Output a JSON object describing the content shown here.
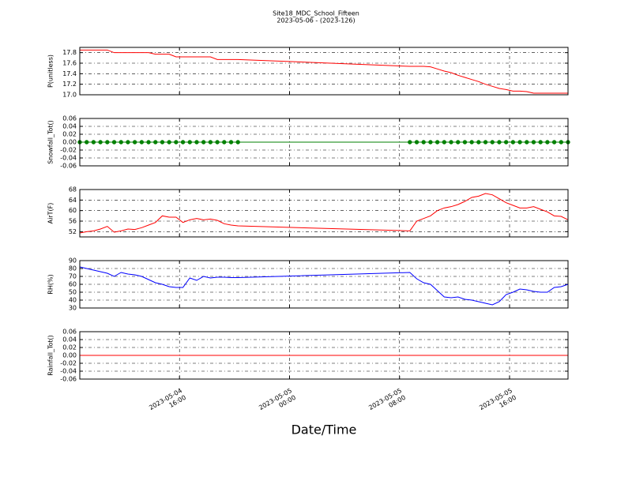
{
  "chart_data": {
    "type": "line",
    "title": "Site18_MDC_School_Fifteen",
    "subtitle": "2023-05-06 - (2023-126)",
    "xlabel": "Date/Time",
    "grid": true,
    "x": [
      "2023-05-04 08:45",
      "2023-05-04 09:15",
      "2023-05-04 09:45",
      "2023-05-04 10:15",
      "2023-05-04 10:45",
      "2023-05-04 11:15",
      "2023-05-04 11:45",
      "2023-05-04 12:15",
      "2023-05-04 12:45",
      "2023-05-04 13:15",
      "2023-05-04 13:45",
      "2023-05-04 14:15",
      "2023-05-04 14:45",
      "2023-05-04 15:15",
      "2023-05-04 15:45",
      "2023-05-04 16:15",
      "2023-05-04 16:45",
      "2023-05-04 17:15",
      "2023-05-04 17:45",
      "2023-05-04 18:15",
      "2023-05-04 18:45",
      "2023-05-04 19:15",
      "2023-05-04 19:45",
      "2023-05-04 20:15",
      "2023-05-05 08:45",
      "2023-05-05 09:15",
      "2023-05-05 09:45",
      "2023-05-05 10:15",
      "2023-05-05 10:45",
      "2023-05-05 11:15",
      "2023-05-05 11:45",
      "2023-05-05 12:15",
      "2023-05-05 12:45",
      "2023-05-05 13:15",
      "2023-05-05 13:45",
      "2023-05-05 14:15",
      "2023-05-05 14:45",
      "2023-05-05 15:15",
      "2023-05-05 15:45",
      "2023-05-05 16:15",
      "2023-05-05 16:45",
      "2023-05-05 17:15",
      "2023-05-05 17:45",
      "2023-05-05 18:15",
      "2023-05-05 18:45",
      "2023-05-05 19:15",
      "2023-05-05 19:45",
      "2023-05-05 20:15"
    ],
    "xlim": [
      "2023-05-04 08:45",
      "2023-05-05 20:15"
    ],
    "xticks": [
      {
        "value": "2023-05-04 16:00",
        "label": "2023-05-04\n16:00"
      },
      {
        "value": "2023-05-05 00:00",
        "label": "2023-05-05\n00:00"
      },
      {
        "value": "2023-05-05 08:00",
        "label": "2023-05-05\n08:00"
      },
      {
        "value": "2023-05-05 16:00",
        "label": "2023-05-05\n16:00"
      }
    ],
    "panels": [
      {
        "ylabel": "P(unitless)",
        "ylim": [
          17.0,
          17.9
        ],
        "yticks": [
          {
            "value": 17,
            "label": "17.0"
          },
          17.2,
          17.4,
          17.6,
          17.8
        ],
        "series": [
          {
            "color": "#ff0000",
            "values": [
              17.85,
              17.85,
              17.85,
              17.85,
              17.85,
              17.8,
              17.8,
              17.8,
              17.8,
              17.8,
              17.8,
              17.77,
              17.77,
              17.77,
              17.72,
              17.72,
              17.72,
              17.72,
              17.72,
              17.72,
              17.67,
              17.67,
              17.67,
              17.67,
              17.54,
              17.54,
              17.54,
              17.53,
              17.49,
              17.45,
              17.42,
              17.37,
              17.33,
              17.29,
              17.25,
              17.2,
              17.16,
              17.12,
              17.1,
              17.07,
              17.07,
              17.06,
              17.03,
              17.03,
              17.03,
              17.03,
              17.03,
              17.03
            ]
          }
        ]
      },
      {
        "ylabel": "Snowfall_Tot()",
        "ylim": [
          -0.06,
          0.06
        ],
        "yticks": [
          -0.06,
          -0.04,
          -0.02,
          {
            "value": 0,
            "label": "0.00"
          },
          0.02,
          0.04,
          0.06
        ],
        "series": [
          {
            "color": "#008000",
            "markers": true,
            "values": [
              0,
              0,
              0,
              0,
              0,
              0,
              0,
              0,
              0,
              0,
              0,
              0,
              0,
              0,
              0,
              0,
              0,
              0,
              0,
              0,
              0,
              0,
              0,
              0,
              0,
              0,
              0,
              0,
              0,
              0,
              0,
              0,
              0,
              0,
              0,
              0,
              0,
              0,
              0,
              0,
              0,
              0,
              0,
              0,
              0,
              0,
              0,
              0
            ]
          }
        ]
      },
      {
        "ylabel": "AirT(F)",
        "ylim": [
          50,
          68
        ],
        "yticks": [
          52,
          56,
          60,
          64,
          68
        ],
        "series": [
          {
            "color": "#ff0000",
            "values": [
              51.5,
              52,
              52.3,
              53,
              54,
              51.8,
              52.3,
              53,
              52.8,
              53.5,
              54.5,
              55.5,
              58,
              57.5,
              57.5,
              55.5,
              56.5,
              57,
              56.5,
              56.8,
              56.3,
              55,
              54.5,
              54.2,
              52.3,
              56,
              57,
              58,
              60,
              61,
              61.5,
              62.3,
              63.5,
              65,
              65.5,
              66.5,
              66,
              64.5,
              63,
              62,
              61,
              61,
              61.5,
              60.5,
              59.5,
              58,
              57.8,
              56.5
            ]
          }
        ]
      },
      {
        "ylabel": "RH(%)",
        "ylim": [
          30,
          90
        ],
        "yticks": [
          30,
          40,
          50,
          60,
          70,
          80,
          90
        ],
        "series": [
          {
            "color": "#0000ff",
            "values": [
              82,
              80,
              78,
              76,
              74,
              70,
              75,
              73,
              72,
              70,
              66,
              62,
              60,
              57,
              56,
              56,
              68,
              65,
              70,
              68,
              69,
              69,
              68.5,
              68.5,
              75,
              67,
              62,
              60,
              52,
              44,
              43,
              44,
              41,
              40,
              38,
              36,
              34,
              38,
              47,
              50,
              54,
              53,
              51,
              50,
              50,
              56,
              57,
              60
            ]
          }
        ]
      },
      {
        "ylabel": "Rainfall_Tot()",
        "ylim": [
          -0.06,
          0.06
        ],
        "yticks": [
          -0.06,
          -0.04,
          -0.02,
          {
            "value": 0,
            "label": "0.00"
          },
          0.02,
          0.04,
          0.06
        ],
        "series": [
          {
            "color": "#ff0000",
            "values": [
              0,
              0,
              0,
              0,
              0,
              0,
              0,
              0,
              0,
              0,
              0,
              0,
              0,
              0,
              0,
              0,
              0,
              0,
              0,
              0,
              0,
              0,
              0,
              0,
              0,
              0,
              0,
              0,
              0,
              0,
              0,
              0,
              0,
              0,
              0,
              0,
              0,
              0,
              0,
              0,
              0,
              0,
              0,
              0,
              0,
              0,
              0,
              0
            ]
          }
        ]
      }
    ]
  }
}
